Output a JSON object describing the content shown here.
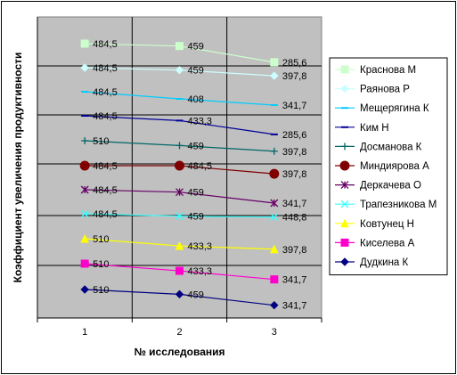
{
  "chart_data": {
    "type": "line",
    "title": "",
    "xlabel": "№ исследования",
    "ylabel": "Коэффициент увеличения продуктивности",
    "x": [
      1,
      2,
      3
    ],
    "grid": true,
    "legend_position": "right",
    "series": [
      {
        "name": "Краснова М",
        "values": [
          484.5,
          459,
          285.6
        ],
        "labels": [
          "484,5",
          "459",
          "285,6"
        ],
        "color": "#ccffcc",
        "marker": "square"
      },
      {
        "name": "Раянова Р",
        "values": [
          484.5,
          459,
          397.8
        ],
        "labels": [
          "484,5",
          "459",
          "397,8"
        ],
        "color": "#ccffff",
        "marker": "diamond"
      },
      {
        "name": "Мещерягина К",
        "values": [
          484.5,
          408,
          341.7
        ],
        "labels": [
          "484,5",
          "408",
          "341,7"
        ],
        "color": "#00ccff",
        "marker": "dash"
      },
      {
        "name": "Ким Н",
        "values": [
          484.5,
          433.3,
          285.6
        ],
        "labels": [
          "484,5",
          "433,3",
          "285,6"
        ],
        "color": "#000099",
        "marker": "dash"
      },
      {
        "name": "Досманова К",
        "values": [
          510,
          459,
          397.8
        ],
        "labels": [
          "510",
          "459",
          "397,8"
        ],
        "color": "#006666",
        "marker": "plus"
      },
      {
        "name": "Миндиярова А",
        "values": [
          484.5,
          484.5,
          397.8
        ],
        "labels": [
          "484,5",
          "484,5",
          "397,8"
        ],
        "color": "#800000",
        "marker": "circle"
      },
      {
        "name": "Деркачева О",
        "values": [
          484.5,
          459,
          341.7
        ],
        "labels": [
          "484,5",
          "459",
          "341,7"
        ],
        "color": "#660066",
        "marker": "star"
      },
      {
        "name": "Трапезникова М",
        "values": [
          484.5,
          459,
          448.8
        ],
        "labels": [
          "484,5",
          "459",
          "448,8"
        ],
        "color": "#33ffff",
        "marker": "x"
      },
      {
        "name": "Ковтунец Н",
        "values": [
          510,
          433.3,
          397.8
        ],
        "labels": [
          "510",
          "433,3",
          "397,8"
        ],
        "color": "#ffff00",
        "marker": "triangle"
      },
      {
        "name": "Киселева А",
        "values": [
          510,
          433.3,
          341.7
        ],
        "labels": [
          "510",
          "433,3",
          "341,7"
        ],
        "color": "#ff00cc",
        "marker": "square"
      },
      {
        "name": "Дудкина К",
        "values": [
          510,
          459,
          341.7
        ],
        "labels": [
          "510",
          "459",
          "341,7"
        ],
        "color": "#000080",
        "marker": "diamond"
      }
    ]
  }
}
